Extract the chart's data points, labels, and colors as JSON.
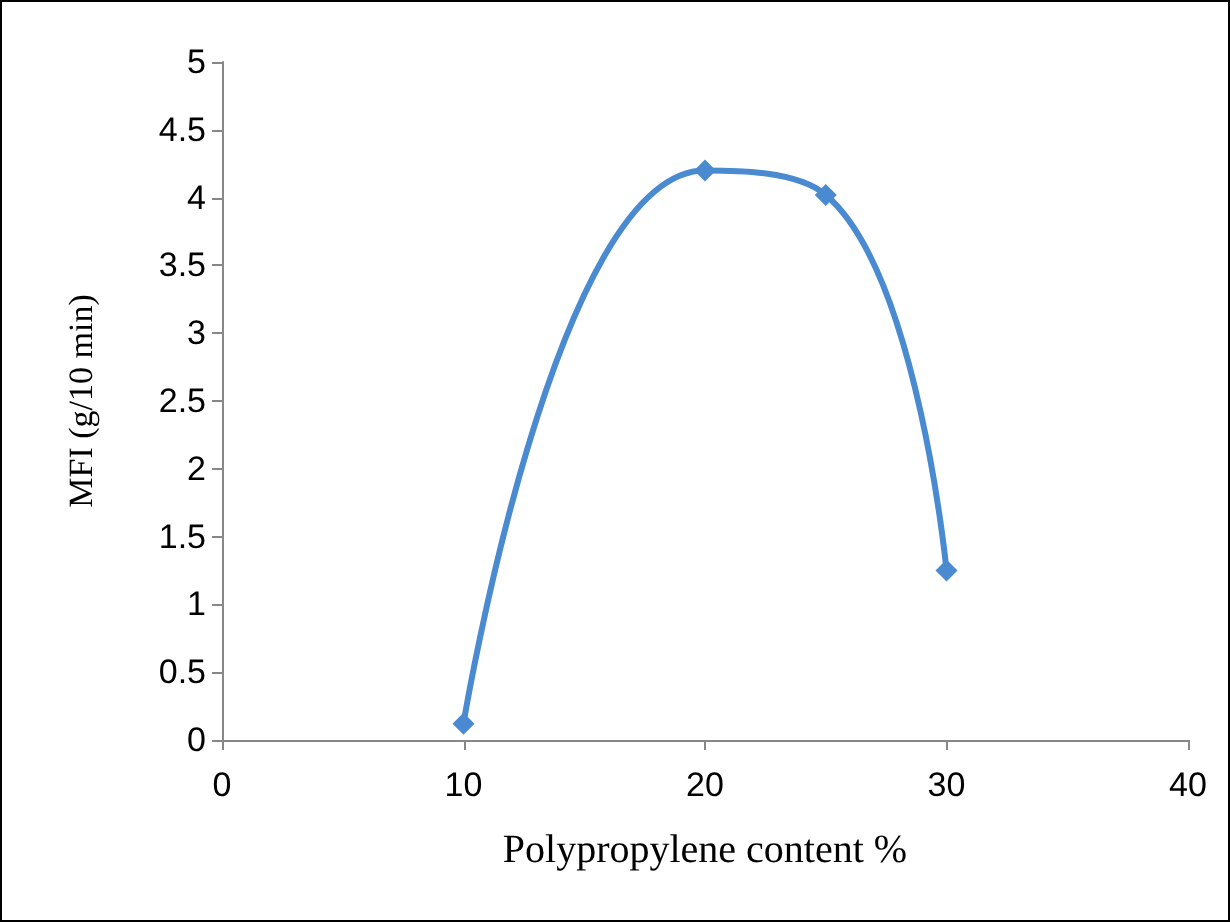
{
  "chart_data": {
    "type": "line",
    "xlabel": "Polypropylene content %",
    "ylabel": "MFI (g/10 min)",
    "x": [
      10,
      20,
      25,
      30
    ],
    "series": [
      {
        "color": "#4a8ad0",
        "values": [
          0.12,
          4.2,
          4.02,
          1.25
        ]
      }
    ],
    "xlim": [
      0,
      40
    ],
    "xticks": [
      0,
      10,
      20,
      30,
      40
    ],
    "ylim": [
      0,
      5
    ],
    "yticks": [
      0,
      0.5,
      1,
      1.5,
      2,
      2.5,
      3,
      3.5,
      4,
      4.5,
      5
    ],
    "grid": false,
    "marker": "diamond",
    "line_style": "solid"
  }
}
